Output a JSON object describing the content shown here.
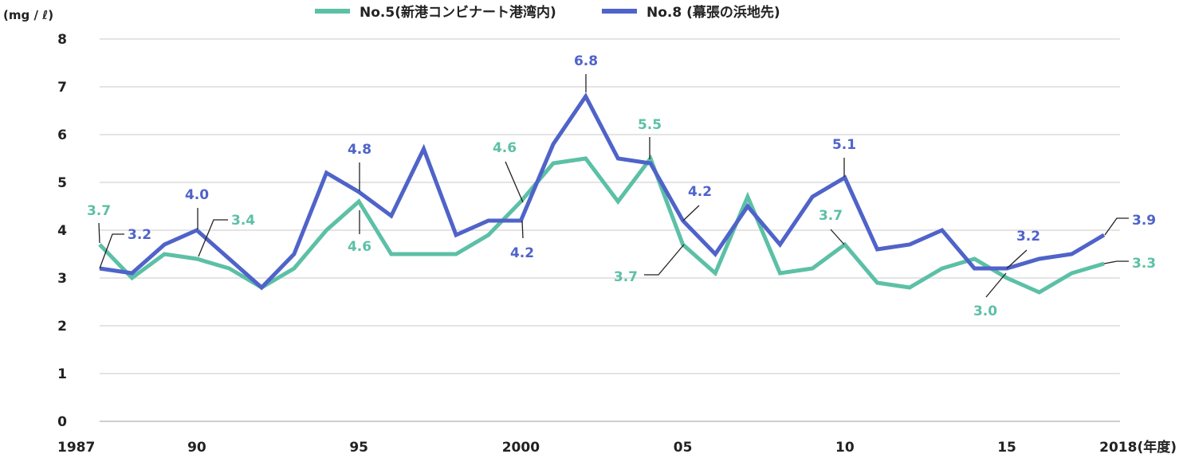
{
  "chart_data": {
    "type": "line",
    "y_unit": "(mg / ℓ)",
    "ylim": [
      0,
      8
    ],
    "yticks": [
      "0",
      "1",
      "2",
      "3",
      "4",
      "5",
      "6",
      "7",
      "8"
    ],
    "x_range": [
      1987,
      2018
    ],
    "xticks": [
      {
        "x": 1987,
        "label": "1987"
      },
      {
        "x": 1990,
        "label": "90"
      },
      {
        "x": 1995,
        "label": "95"
      },
      {
        "x": 2000,
        "label": "2000"
      },
      {
        "x": 2005,
        "label": "05"
      },
      {
        "x": 2010,
        "label": "10"
      },
      {
        "x": 2015,
        "label": "15"
      },
      {
        "x": 2018,
        "label": "2018(年度)"
      }
    ],
    "grid": true,
    "legend_position": "top",
    "x": [
      1987,
      1988,
      1989,
      1990,
      1991,
      1992,
      1993,
      1994,
      1995,
      1996,
      1997,
      1998,
      1999,
      2000,
      2001,
      2002,
      2003,
      2004,
      2005,
      2006,
      2007,
      2008,
      2009,
      2010,
      2011,
      2012,
      2013,
      2014,
      2015,
      2016,
      2017,
      2018
    ],
    "series": [
      {
        "name": "No.5(新港コンビナート港湾内)",
        "color": "#5cc0a6",
        "values": [
          3.7,
          3.0,
          3.5,
          3.4,
          3.2,
          2.8,
          3.2,
          4.0,
          4.6,
          3.5,
          3.5,
          3.5,
          3.9,
          4.6,
          5.4,
          5.5,
          4.6,
          5.5,
          3.7,
          3.1,
          4.7,
          3.1,
          3.2,
          3.7,
          2.9,
          2.8,
          3.2,
          3.4,
          3.0,
          2.7,
          3.1,
          3.3
        ],
        "labels": [
          {
            "x": 1987,
            "text": "3.7"
          },
          {
            "x": 1990,
            "text": "3.4"
          },
          {
            "x": 1995,
            "text": "4.6"
          },
          {
            "x": 2000,
            "text": "4.6"
          },
          {
            "x": 2004,
            "text": "5.5"
          },
          {
            "x": 2005,
            "text": "3.7"
          },
          {
            "x": 2010,
            "text": "3.7"
          },
          {
            "x": 2015,
            "text": "3.0"
          },
          {
            "x": 2018,
            "text": "3.3"
          }
        ]
      },
      {
        "name": "No.8 (幕張の浜地先)",
        "color": "#4f63c9",
        "values": [
          3.2,
          3.1,
          3.7,
          4.0,
          3.4,
          2.8,
          3.5,
          5.2,
          4.8,
          4.3,
          5.7,
          3.9,
          4.2,
          4.2,
          5.8,
          6.8,
          5.5,
          5.4,
          4.2,
          3.5,
          4.5,
          3.7,
          4.7,
          5.1,
          3.6,
          3.7,
          4.0,
          3.2,
          3.2,
          3.4,
          3.5,
          3.9
        ],
        "labels": [
          {
            "x": 1987,
            "text": "3.2"
          },
          {
            "x": 1990,
            "text": "4.0"
          },
          {
            "x": 1995,
            "text": "4.8"
          },
          {
            "x": 2000,
            "text": "4.2"
          },
          {
            "x": 2002,
            "text": "6.8"
          },
          {
            "x": 2005,
            "text": "4.2"
          },
          {
            "x": 2010,
            "text": "5.1"
          },
          {
            "x": 2015,
            "text": "3.2"
          },
          {
            "x": 2018,
            "text": "3.9"
          }
        ]
      }
    ]
  }
}
